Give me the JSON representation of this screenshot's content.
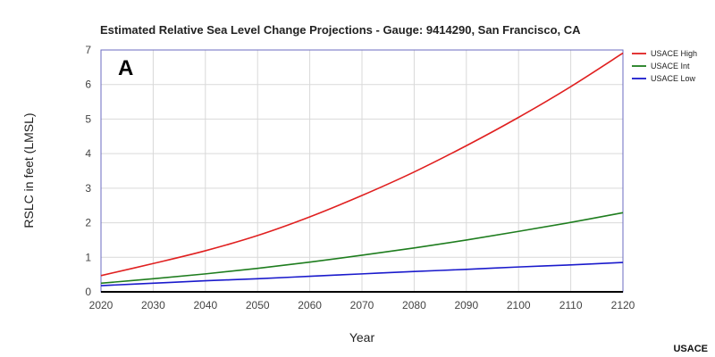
{
  "chart_data": {
    "type": "line",
    "title": "Estimated Relative Sea Level Change Projections - Gauge: 9414290, San Francisco, CA",
    "panel_label": "A",
    "xlabel": "Year",
    "ylabel": "RSLC in feet (LMSL)",
    "credit": "USACE",
    "xlim": [
      2020,
      2120
    ],
    "ylim": [
      0,
      7
    ],
    "x_ticks": [
      2020,
      2030,
      2040,
      2050,
      2060,
      2070,
      2080,
      2090,
      2100,
      2110,
      2120
    ],
    "y_ticks": [
      0,
      1,
      2,
      3,
      4,
      5,
      6,
      7
    ],
    "grid": true,
    "legend_position": "right",
    "x": [
      2020,
      2030,
      2040,
      2050,
      2060,
      2070,
      2080,
      2090,
      2100,
      2110,
      2120
    ],
    "series": [
      {
        "name": "USACE High",
        "color": "#e02020",
        "values": [
          0.47,
          0.82,
          1.19,
          1.63,
          2.17,
          2.79,
          3.47,
          4.23,
          5.05,
          5.94,
          6.91
        ]
      },
      {
        "name": "USACE Int",
        "color": "#1e7d1e",
        "values": [
          0.25,
          0.38,
          0.52,
          0.68,
          0.86,
          1.06,
          1.27,
          1.5,
          1.75,
          2.01,
          2.29
        ]
      },
      {
        "name": "USACE Low",
        "color": "#1a1acc",
        "values": [
          0.18,
          0.25,
          0.32,
          0.38,
          0.45,
          0.52,
          0.59,
          0.65,
          0.72,
          0.78,
          0.85
        ]
      }
    ]
  }
}
